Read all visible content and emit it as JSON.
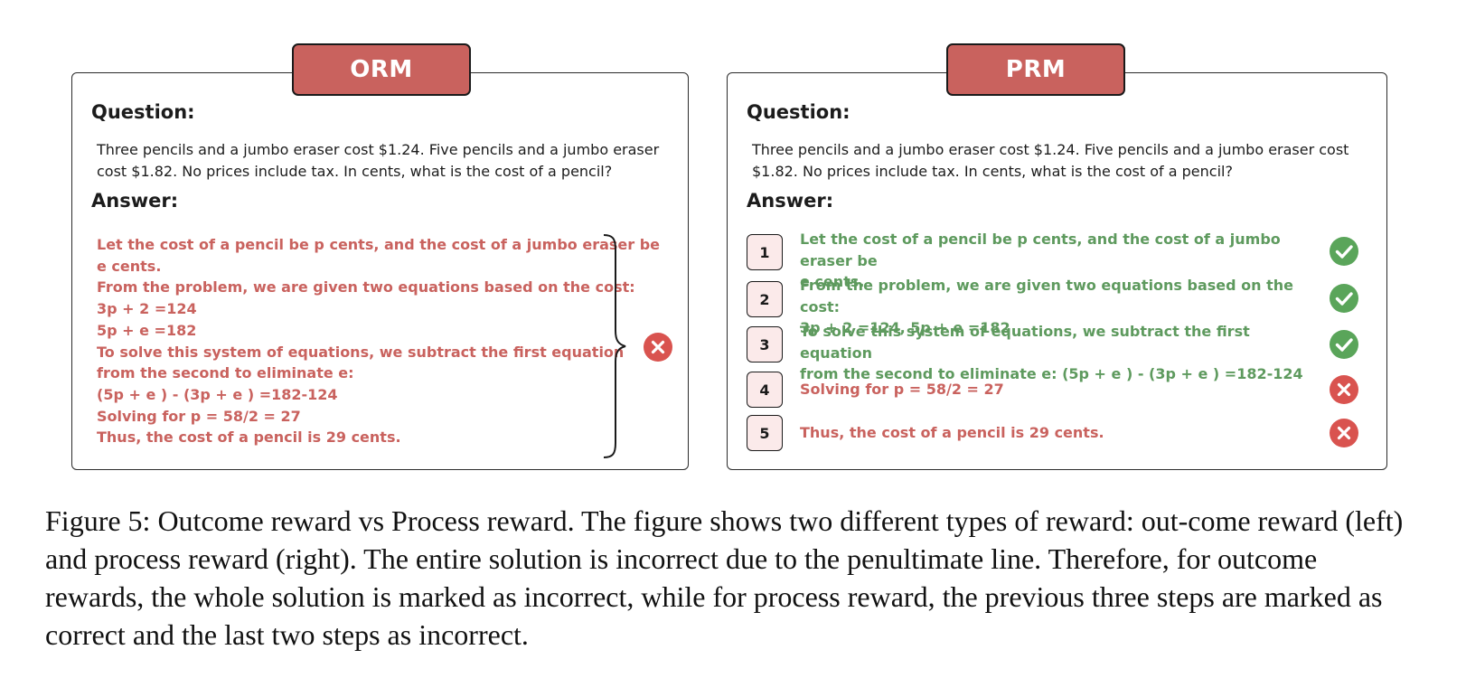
{
  "orm": {
    "tab_label": "ORM",
    "question_heading": "Question:",
    "question_text": "Three pencils and a jumbo eraser cost $1.24.  Five pencils and a jumbo eraser cost $1.82. No prices include tax. In cents, what is the cost of a pencil?",
    "answer_heading": "Answer:",
    "answer_lines": [
      "Let the cost of a pencil be p cents, and the cost of a jumbo eraser be",
      "e cents.",
      "From the problem, we are given two equations based on the cost:",
      "3p + 2 =124",
      "5p + e =182",
      "To solve this system of equations, we subtract the first equation",
      "from the second to eliminate e:",
      "(5p + e ) - (3p + e ) =182-124",
      "Solving for p = 58/2 = 27",
      "Thus, the cost of a pencil is 29 cents."
    ],
    "verdict": "incorrect"
  },
  "prm": {
    "tab_label": "PRM",
    "question_heading": "Question:",
    "question_text": "Three pencils and a jumbo eraser cost $1.24.  Five pencils and a jumbo eraser cost $1.82. No prices include tax. In cents, what is the cost of a pencil?",
    "answer_heading": "Answer:",
    "steps": [
      {
        "number": "1",
        "line1": "Let the cost of a pencil be p cents, and the cost of a jumbo eraser be",
        "line2": "e cents.",
        "verdict": "correct"
      },
      {
        "number": "2",
        "line1": "From the problem, we are given two equations based on the cost:",
        "line2": "3p + 2 =124, 5p + e =182",
        "verdict": "correct"
      },
      {
        "number": "3",
        "line1": "To solve this system of equations, we subtract the first equation",
        "line2": "from the second to eliminate e: (5p + e ) - (3p + e ) =182-124",
        "verdict": "correct"
      },
      {
        "number": "4",
        "line1": "Solving for p = 58/2 = 27",
        "line2": "",
        "verdict": "incorrect"
      },
      {
        "number": "5",
        "line1": "Thus, the cost of a pencil is 29 cents.",
        "line2": "",
        "verdict": "incorrect"
      }
    ]
  },
  "caption": "Figure 5: Outcome reward vs Process reward. The figure shows two different types of reward: out-come reward (left) and process reward (right). The entire solution is incorrect due to the penultimate line. Therefore, for outcome rewards, the whole solution is marked as incorrect, while for process reward, the previous three steps are marked as correct and the last two steps as incorrect.",
  "colors": {
    "accent_red": "#c9625e",
    "correct_green": "#5e9a5e",
    "check_green": "#5aa55a",
    "cross_red": "#d9534f",
    "step_box_fill": "#fbeaea"
  }
}
